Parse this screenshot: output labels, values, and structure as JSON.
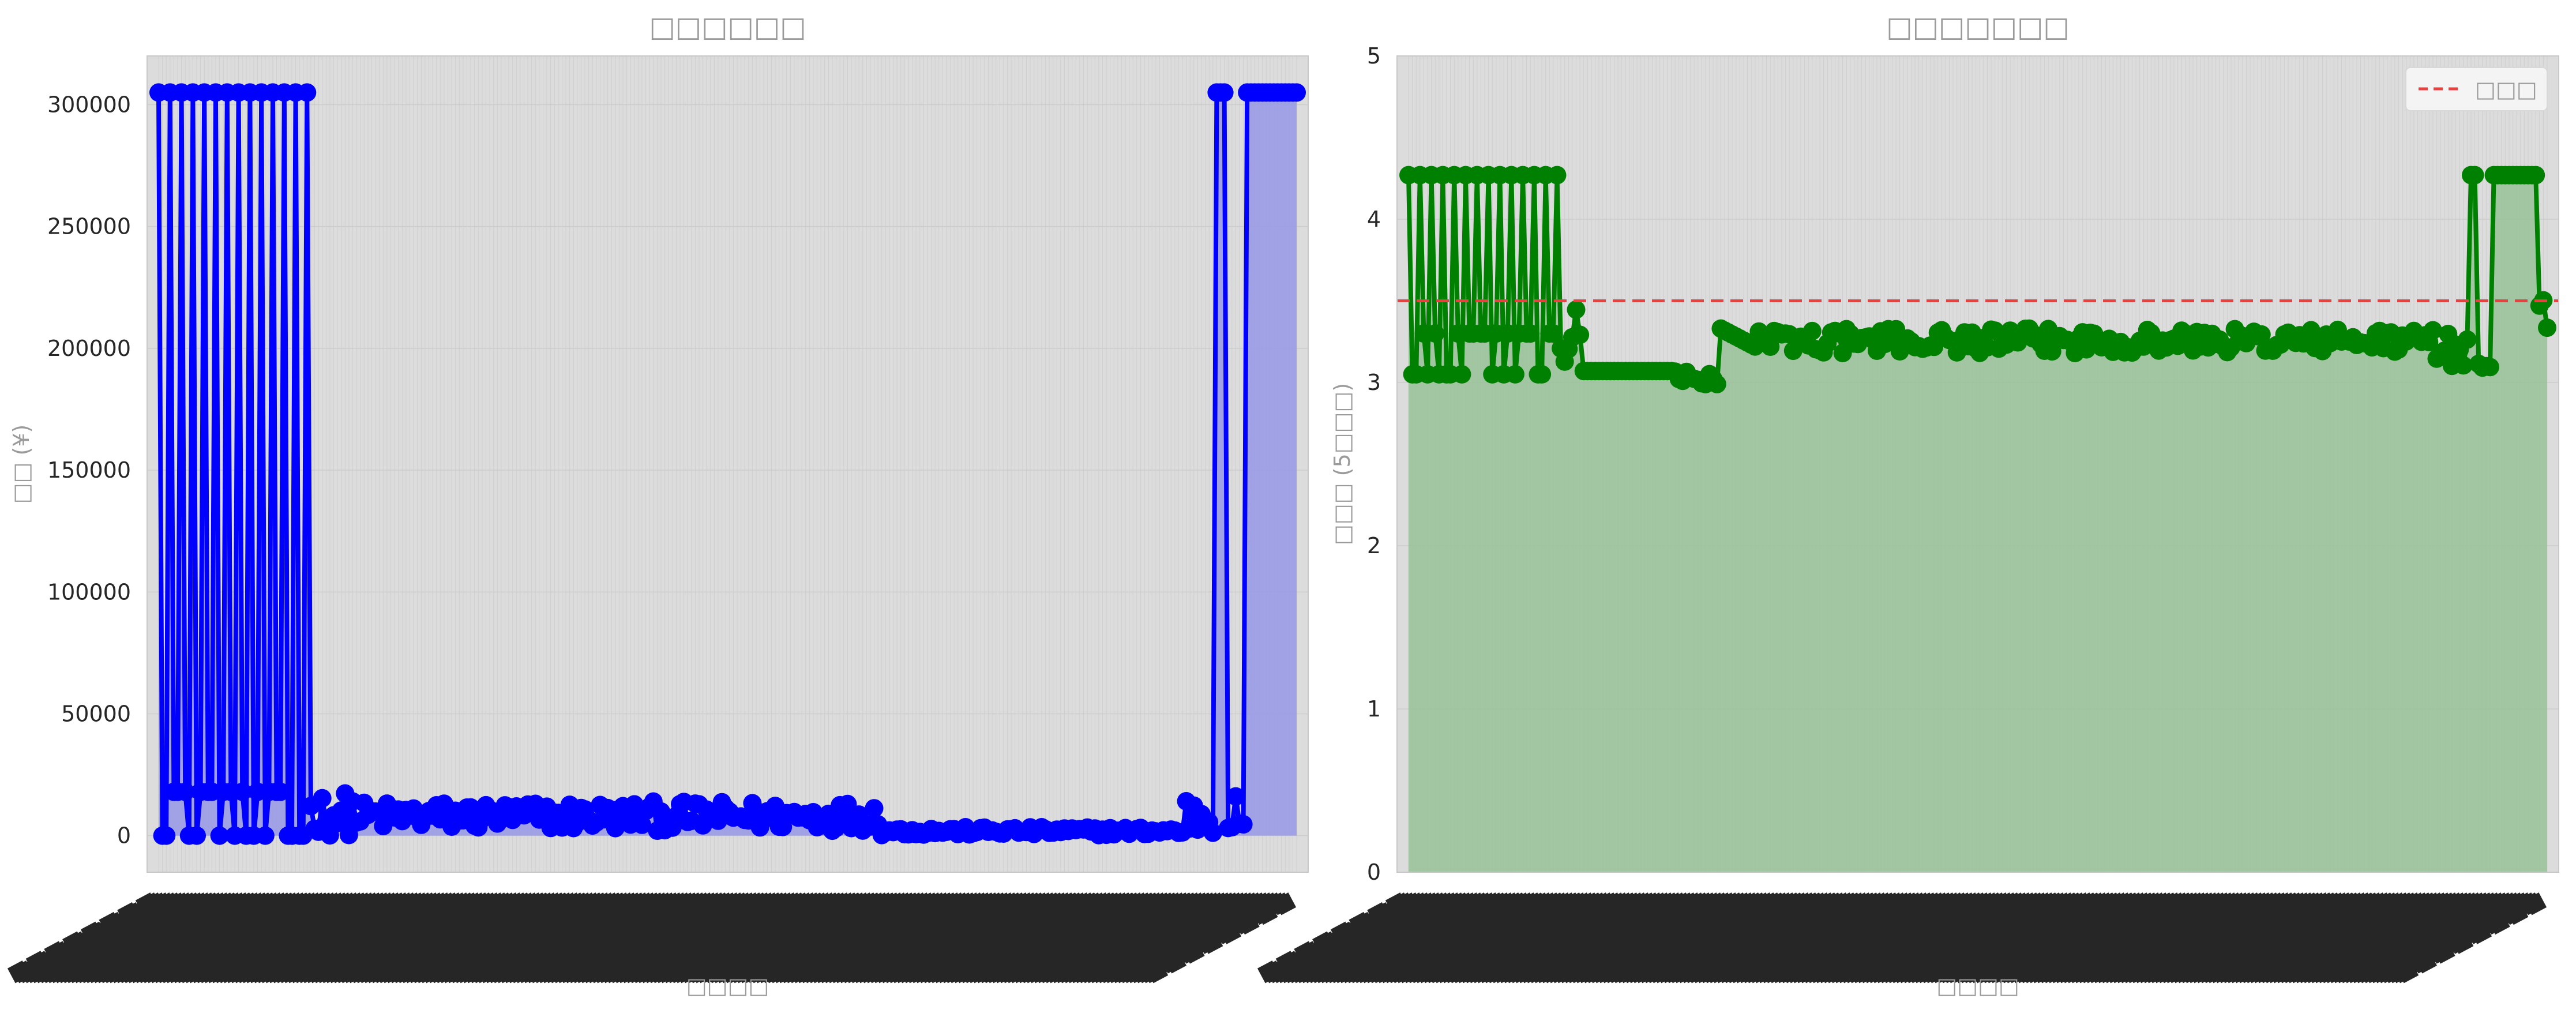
{
  "chart_data": [
    {
      "type": "line",
      "title": "□□□□□□",
      "xlabel": "□□□□",
      "ylabel": "□□ (¥)",
      "ylim": [
        -15000,
        320000
      ],
      "yticks": [
        0,
        50000,
        100000,
        150000,
        200000,
        250000,
        300000
      ],
      "ytick_labels": [
        "0",
        "50000",
        "100000",
        "150000",
        "200000",
        "250000",
        "300000"
      ],
      "grid": true,
      "fill_under": true,
      "colors": {
        "line": "#0000ff",
        "fill": "#9a9ae6",
        "plot_bg": "#dcdcdc"
      },
      "x_count": 300,
      "segments": [
        {
          "x": [
            0,
            40
          ],
          "pattern": "spikes",
          "low": 0,
          "mid": 18000,
          "high": 305000,
          "spike_every": 3
        },
        {
          "x": [
            40,
            53
          ],
          "pattern": "noise",
          "low": 0,
          "high": 18000
        },
        {
          "x": [
            53,
            190
          ],
          "pattern": "noise",
          "low": 2000,
          "high": 14000
        },
        {
          "x": [
            190,
            270
          ],
          "pattern": "noise",
          "low": 200,
          "high": 3500
        },
        {
          "x": [
            270,
            278
          ],
          "pattern": "noise",
          "low": 0,
          "high": 17000
        },
        {
          "x": [
            278,
            281
          ],
          "pattern": "const",
          "value": 305000
        },
        {
          "x": [
            281,
            286
          ],
          "pattern": "noise",
          "low": 0,
          "high": 17000
        },
        {
          "x": [
            286,
            300
          ],
          "pattern": "const",
          "value": 305000
        }
      ],
      "series": [
        {
          "name": "",
          "color": "#0000ff"
        }
      ]
    },
    {
      "type": "line",
      "title": "□□□□□□□",
      "xlabel": "□□□□",
      "ylabel": "□□□ (5□□□)",
      "ylim": [
        0,
        5
      ],
      "yticks": [
        0,
        1,
        2,
        3,
        4,
        5
      ],
      "ytick_labels": [
        "0",
        "1",
        "2",
        "3",
        "4",
        "5"
      ],
      "grid": true,
      "fill_under": true,
      "colors": {
        "line": "#008000",
        "fill": "#9bc29b",
        "plot_bg": "#dcdcdc",
        "ref": "#e8413f"
      },
      "x_count": 300,
      "reference_line": {
        "value": 3.5,
        "label": "□□□"
      },
      "legend": {
        "position": "top-right",
        "entries": [
          "□□□"
        ]
      },
      "segments": [
        {
          "x": [
            0,
            40
          ],
          "pattern": "spikes",
          "low": 3.05,
          "mid": 3.3,
          "high": 4.27,
          "spike_every": 3
        },
        {
          "x": [
            40,
            46
          ],
          "pattern": "noise",
          "low": 3.05,
          "high": 3.5
        },
        {
          "x": [
            46,
            70
          ],
          "pattern": "const",
          "value": 3.07
        },
        {
          "x": [
            70,
            82
          ],
          "pattern": "noise",
          "low": 2.98,
          "high": 3.07
        },
        {
          "x": [
            82,
            92
          ],
          "pattern": "ramp",
          "from": 3.33,
          "to": 3.22
        },
        {
          "x": [
            92,
            270
          ],
          "pattern": "noise",
          "low": 3.18,
          "high": 3.33
        },
        {
          "x": [
            270,
            279
          ],
          "pattern": "noise",
          "low": 3.1,
          "high": 3.3
        },
        {
          "x": [
            279,
            281
          ],
          "pattern": "const",
          "value": 4.27
        },
        {
          "x": [
            281,
            285
          ],
          "pattern": "noise",
          "low": 3.08,
          "high": 3.15
        },
        {
          "x": [
            285,
            297
          ],
          "pattern": "const",
          "value": 4.27
        },
        {
          "x": [
            297,
            300
          ],
          "pattern": "noise",
          "low": 3.3,
          "high": 3.52
        }
      ],
      "series": [
        {
          "name": "",
          "color": "#008000"
        }
      ]
    }
  ]
}
